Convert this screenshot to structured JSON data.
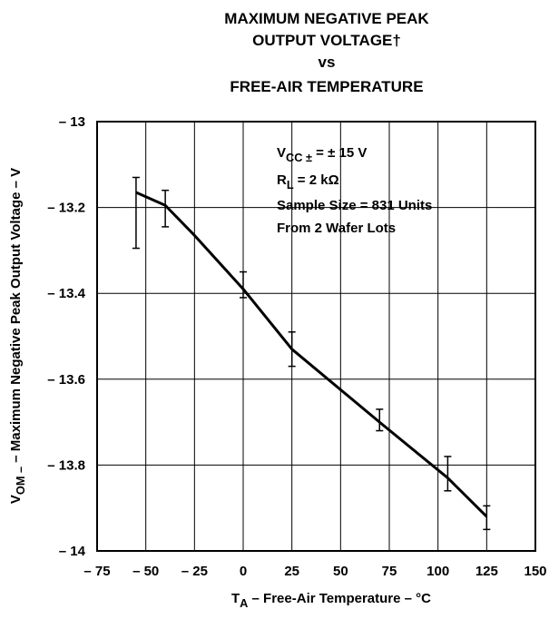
{
  "chart_data": {
    "type": "line",
    "title": [
      "MAXIMUM NEGATIVE PEAK",
      "OUTPUT VOLTAGE†",
      "vs",
      "FREE-AIR TEMPERATURE"
    ],
    "xlabel": {
      "main": "T",
      "sub": "A",
      "rest": " – Free-Air Temperature – °C"
    },
    "ylabel": {
      "main": "V",
      "sub": "OM –",
      "rest": " – Maximum Negative Peak Output Voltage – V"
    },
    "annotations": [
      {
        "main": "V",
        "sub": "CC ±",
        "rest": " = ± 15 V"
      },
      {
        "main": "R",
        "sub": "L",
        "rest": " = 2 kΩ"
      },
      {
        "main": "Sample Size = 831 Units"
      },
      {
        "main": "From 2 Wafer Lots"
      }
    ],
    "xlim": [
      -75,
      150
    ],
    "ylim": [
      -14,
      -13
    ],
    "xticks": [
      {
        "value": -75,
        "label": "– 75"
      },
      {
        "value": -50,
        "label": "– 50"
      },
      {
        "value": -25,
        "label": "– 25"
      },
      0,
      25,
      50,
      75,
      100,
      125,
      150
    ],
    "yticks": [
      {
        "value": -13,
        "label": "– 13"
      },
      {
        "value": -13.2,
        "label": "– 13.2"
      },
      {
        "value": -13.4,
        "label": "– 13.4"
      },
      {
        "value": -13.6,
        "label": "– 13.6"
      },
      {
        "value": -13.8,
        "label": "– 13.8"
      },
      {
        "value": -14,
        "label": "– 14"
      }
    ],
    "grid": true,
    "series": [
      {
        "color": "#000000",
        "x": [
          -55,
          -40,
          -25,
          0,
          25,
          70,
          105,
          125
        ],
        "values": [
          -13.165,
          -13.195,
          -13.265,
          -13.39,
          -13.53,
          -13.7,
          -13.83,
          -13.92
        ]
      }
    ],
    "error_bars": {
      "x": [
        -55,
        -40,
        0,
        25,
        70,
        105,
        125
      ],
      "low": [
        -13.295,
        -13.245,
        -13.41,
        -13.57,
        -13.72,
        -13.86,
        -13.95
      ],
      "high": [
        -13.13,
        -13.16,
        -13.35,
        -13.49,
        -13.67,
        -13.78,
        -13.895
      ]
    }
  }
}
